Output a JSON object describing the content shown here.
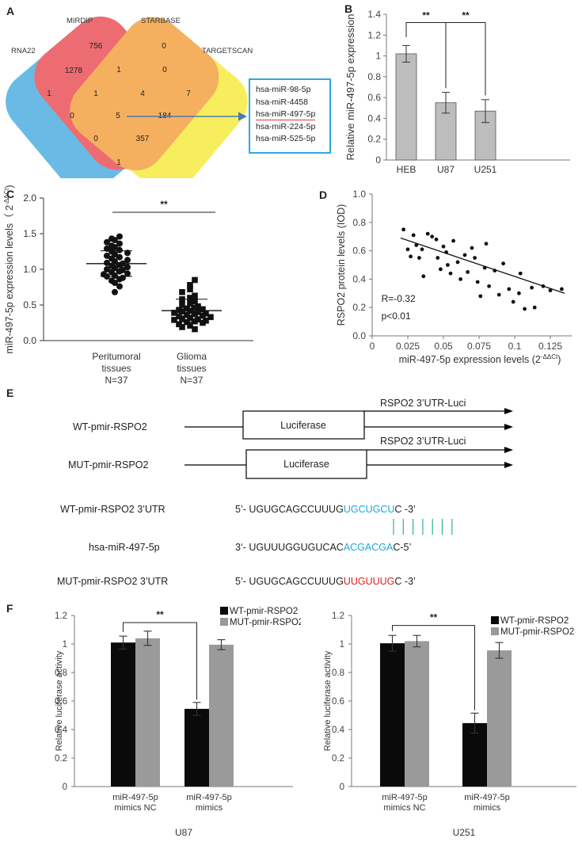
{
  "panels": {
    "a": "A",
    "b": "B",
    "c": "C",
    "d": "D",
    "e": "E",
    "f": "F"
  },
  "venn": {
    "sets": [
      "RNA22",
      "MIRDIP",
      "STARBASE",
      "TARGETSCAN"
    ],
    "colors": [
      "#3fa9e0",
      "#e8434b",
      "#f39b33",
      "#f4ea2f"
    ],
    "regions": [
      {
        "id": "mirdip-only",
        "value": "756"
      },
      {
        "id": "starbase-only",
        "value": "0"
      },
      {
        "id": "rna22-mirdip",
        "value": "1278"
      },
      {
        "id": "mirdip-starbase",
        "value": "1"
      },
      {
        "id": "starbase-targetscan",
        "value": "0"
      },
      {
        "id": "rna22-only",
        "value": "1"
      },
      {
        "id": "rna22-mirdip-starbase",
        "value": "1"
      },
      {
        "id": "mirdip-starbase-targetscan",
        "value": "4"
      },
      {
        "id": "targetscan-only",
        "value": "7"
      },
      {
        "id": "rna22-starbase",
        "value": "0"
      },
      {
        "id": "all-four",
        "value": "5"
      },
      {
        "id": "mirdip-targetscan",
        "value": "184"
      },
      {
        "id": "rna22-starbase-targetscan",
        "value": "0"
      },
      {
        "id": "rna22-mirdip-targetscan",
        "value": "357"
      },
      {
        "id": "rna22-targetscan",
        "value": "1"
      }
    ],
    "mirnas": [
      "hsa-miR-98-5p",
      "hsa-miR-4458",
      "hsa-miR-497-5p",
      "hsa-miR-224-5p",
      "hsa-miR-525-5p"
    ]
  },
  "chart_data": [
    {
      "id": "B",
      "type": "bar",
      "title": "",
      "ylabel": "Relative  miR-497-5p expression",
      "categories": [
        "HEB",
        "U87",
        "U251"
      ],
      "values": [
        1.02,
        0.55,
        0.47
      ],
      "errors": [
        0.08,
        0.1,
        0.11
      ],
      "ylim": [
        0,
        1.4
      ],
      "yticks": [
        "0",
        "0.2",
        "0.4",
        "0.6",
        "0.8",
        "1",
        "1.2",
        "1.4"
      ],
      "significance": [
        "**",
        "**"
      ],
      "bar_color": "#bdbdbd"
    },
    {
      "id": "C",
      "type": "scatter",
      "ylabel_main": "miR-497-5p expression levels（ 2",
      "ylabel_sup": "-ΔΔCt",
      "ylabel_end": ")",
      "ylim": [
        0,
        2.0
      ],
      "yticks": [
        "0.0",
        "0.5",
        "1.0",
        "1.5",
        "2.0"
      ],
      "groups": [
        {
          "name_lines": [
            "Peritumoral",
            "tissues",
            "N=37"
          ],
          "mean": 1.08,
          "sd": 0.18,
          "marker": "circle",
          "values": [
            1.46,
            1.43,
            1.41,
            1.38,
            1.36,
            1.33,
            1.31,
            1.29,
            1.27,
            1.25,
            1.23,
            1.21,
            1.19,
            1.17,
            1.15,
            1.13,
            1.11,
            1.09,
            1.08,
            1.06,
            1.05,
            1.03,
            1.02,
            1.0,
            0.99,
            0.97,
            0.96,
            0.94,
            0.93,
            0.91,
            0.9,
            0.88,
            0.86,
            0.84,
            0.81,
            0.76,
            0.68
          ]
        },
        {
          "name_lines": [
            "Glioma",
            "tissues",
            "N=37"
          ],
          "mean": 0.42,
          "sd": 0.16,
          "marker": "square",
          "values": [
            0.85,
            0.78,
            0.72,
            0.68,
            0.63,
            0.6,
            0.58,
            0.55,
            0.52,
            0.5,
            0.48,
            0.46,
            0.45,
            0.44,
            0.43,
            0.42,
            0.41,
            0.4,
            0.39,
            0.38,
            0.37,
            0.36,
            0.35,
            0.34,
            0.33,
            0.32,
            0.31,
            0.3,
            0.29,
            0.28,
            0.27,
            0.26,
            0.25,
            0.23,
            0.21,
            0.19,
            0.16
          ]
        }
      ],
      "significance": "**"
    },
    {
      "id": "D",
      "type": "scatter",
      "xlabel_main": "miR-497-5p expression levels (2",
      "xlabel_sup": "-ΔΔCt",
      "xlabel_end": ")",
      "ylabel": "RSPO2 protein levels (IOD)",
      "xlim": [
        0,
        0.14
      ],
      "ylim": [
        0,
        1.0
      ],
      "xticks": [
        "0",
        "0.025",
        "0.05",
        "0.075",
        "0.1",
        "0.125"
      ],
      "yticks": [
        "0.0",
        "0.2",
        "0.4",
        "0.6",
        "0.8",
        "1.0"
      ],
      "annotation_r": "R=-0.32",
      "annotation_p": "p<0.01",
      "trendline": [
        [
          0.02,
          0.69
        ],
        [
          0.135,
          0.3
        ]
      ],
      "points": [
        [
          0.022,
          0.75
        ],
        [
          0.025,
          0.61
        ],
        [
          0.027,
          0.56
        ],
        [
          0.029,
          0.71
        ],
        [
          0.031,
          0.64
        ],
        [
          0.033,
          0.55
        ],
        [
          0.035,
          0.61
        ],
        [
          0.036,
          0.42
        ],
        [
          0.039,
          0.72
        ],
        [
          0.042,
          0.7
        ],
        [
          0.045,
          0.68
        ],
        [
          0.046,
          0.55
        ],
        [
          0.048,
          0.47
        ],
        [
          0.05,
          0.63
        ],
        [
          0.052,
          0.59
        ],
        [
          0.053,
          0.5
        ],
        [
          0.055,
          0.44
        ],
        [
          0.057,
          0.67
        ],
        [
          0.06,
          0.52
        ],
        [
          0.062,
          0.4
        ],
        [
          0.065,
          0.57
        ],
        [
          0.067,
          0.45
        ],
        [
          0.07,
          0.62
        ],
        [
          0.072,
          0.55
        ],
        [
          0.074,
          0.38
        ],
        [
          0.076,
          0.28
        ],
        [
          0.079,
          0.48
        ],
        [
          0.08,
          0.65
        ],
        [
          0.082,
          0.35
        ],
        [
          0.086,
          0.46
        ],
        [
          0.089,
          0.29
        ],
        [
          0.092,
          0.51
        ],
        [
          0.096,
          0.33
        ],
        [
          0.099,
          0.24
        ],
        [
          0.103,
          0.3
        ],
        [
          0.104,
          0.44
        ],
        [
          0.107,
          0.19
        ],
        [
          0.112,
          0.34
        ],
        [
          0.114,
          0.2
        ],
        [
          0.12,
          0.35
        ],
        [
          0.125,
          0.32
        ],
        [
          0.133,
          0.33
        ]
      ]
    },
    {
      "id": "F-U87",
      "type": "bar",
      "title": "U87",
      "ylabel": "Relative luciferase activity",
      "categories": [
        [
          "miR-497-5p",
          "mimics NC"
        ],
        [
          "miR-497-5p",
          "mimics"
        ]
      ],
      "series": [
        {
          "name": "WT-pmir-RSPO2",
          "values": [
            1.01,
            0.545
          ],
          "errors": [
            0.045,
            0.045
          ],
          "color": "#0a0a0a"
        },
        {
          "name": "MUT-pmir-RSPO2",
          "values": [
            1.04,
            0.995
          ],
          "errors": [
            0.05,
            0.035
          ],
          "color": "#9a9a9a"
        }
      ],
      "ylim": [
        0,
        1.2
      ],
      "yticks": [
        "0",
        "0.2",
        "0.4",
        "0.6",
        "0.8",
        "1",
        "1.2"
      ],
      "significance": "**"
    },
    {
      "id": "F-U251",
      "type": "bar",
      "title": "U251",
      "ylabel": "Relative luciferase activity",
      "categories": [
        [
          "miR-497-5p",
          "mimics NC"
        ],
        [
          "miR-497-5p",
          "mimics"
        ]
      ],
      "series": [
        {
          "name": "WT-pmir-RSPO2",
          "values": [
            1.005,
            0.445
          ],
          "errors": [
            0.055,
            0.07
          ],
          "color": "#0a0a0a"
        },
        {
          "name": "MUT-pmir-RSPO2",
          "values": [
            1.02,
            0.955
          ],
          "errors": [
            0.04,
            0.055
          ],
          "color": "#9a9a9a"
        }
      ],
      "ylim": [
        0,
        1.2
      ],
      "yticks": [
        "0",
        "0.2",
        "0.4",
        "0.6",
        "0.8",
        "1",
        "1.2"
      ],
      "significance": "**"
    }
  ],
  "constructs": {
    "wt_label": "WT-pmir-RSPO2",
    "mut_label": "MUT-pmir-RSPO2",
    "luciferase": "Luciferase",
    "utr_label": "RSPO2 3’UTR-Luci"
  },
  "sequences": {
    "wt_name": "WT-pmir-RSPO2 3’UTR",
    "wt_pre": "5’- UGUGCAGCCUUUG",
    "wt_hl": "UGCUGCU",
    "wt_post": "C -3’",
    "mir_name": "hsa-miR-497-5p",
    "mir_pre": "3‘- UGUUUGGUGUCAC",
    "mir_hl": "ACGACGA",
    "mir_post": "C-5’",
    "mut_name": "MUT-pmir-RSPO2 3’UTR",
    "mut_pre": "5’- UGUGCAGCCUUUG",
    "mut_hl": "UUGUUUG",
    "mut_post": "C -3’",
    "pair_count": 7,
    "colors": {
      "seed": "#1ea7d6",
      "mut": "#e02020",
      "pair": "#2db38a"
    }
  }
}
